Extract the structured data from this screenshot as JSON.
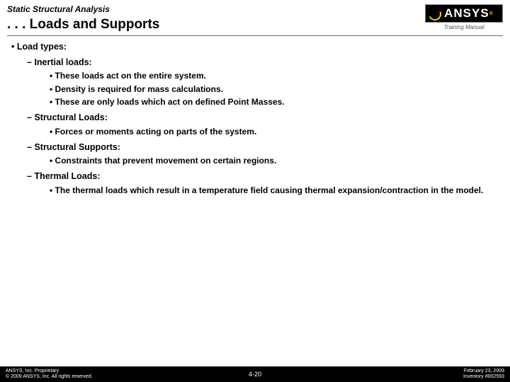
{
  "header": {
    "chapter": "Static Structural Analysis",
    "title": ". . . Loads and Supports",
    "logo_text": "ANSYS",
    "training_label": "Training Manual"
  },
  "content": {
    "h1": "Load types:",
    "s1": {
      "title": "Inertial loads:",
      "b1": "These loads act on the entire system.",
      "b2": "Density is required for mass calculations.",
      "b3": "These are only loads which act on defined Point Masses."
    },
    "s2": {
      "title": "Structural Loads:",
      "b1": "Forces or moments acting on parts of the system."
    },
    "s3": {
      "title": "Structural Supports:",
      "b1": "Constraints that prevent movement on certain regions."
    },
    "s4": {
      "title": "Thermal Loads:",
      "b1": "The thermal loads which result in a temperature field causing thermal expansion/contraction in the model."
    }
  },
  "footer": {
    "left1": "ANSYS, Inc. Proprietary",
    "left2": "© 2009 ANSYS, Inc. All rights reserved.",
    "center": "4-20",
    "right1": "February 23, 2009",
    "right2": "Inventory #002593"
  }
}
